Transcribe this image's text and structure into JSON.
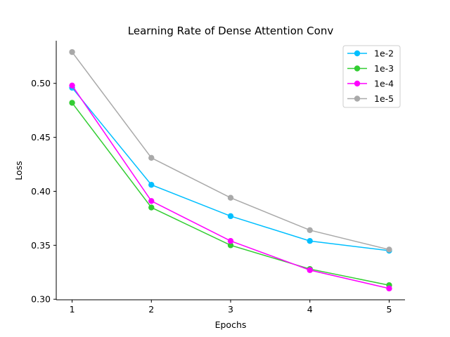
{
  "chart_data": {
    "type": "line",
    "title": "Learning Rate of Dense Attention Conv",
    "xlabel": "Epochs",
    "ylabel": "Loss",
    "x": [
      1,
      2,
      3,
      4,
      5
    ],
    "x_ticks": [
      "1",
      "2",
      "3",
      "4",
      "5"
    ],
    "xlim": [
      0.8,
      5.2
    ],
    "ylim": [
      0.2995,
      0.5395
    ],
    "y_ticks": [
      "0.30",
      "0.35",
      "0.40",
      "0.45",
      "0.50"
    ],
    "grid": false,
    "legend_position": "top-right",
    "series": [
      {
        "name": "1e-2",
        "color": "#00bfff",
        "values": [
          0.496,
          0.406,
          0.377,
          0.354,
          0.345
        ]
      },
      {
        "name": "1e-3",
        "color": "#32cd32",
        "values": [
          0.482,
          0.385,
          0.35,
          0.328,
          0.313
        ]
      },
      {
        "name": "1e-4",
        "color": "#ff00ff",
        "values": [
          0.498,
          0.391,
          0.354,
          0.327,
          0.31
        ]
      },
      {
        "name": "1e-5",
        "color": "#a9a9a9",
        "values": [
          0.529,
          0.431,
          0.394,
          0.364,
          0.346
        ]
      }
    ]
  }
}
